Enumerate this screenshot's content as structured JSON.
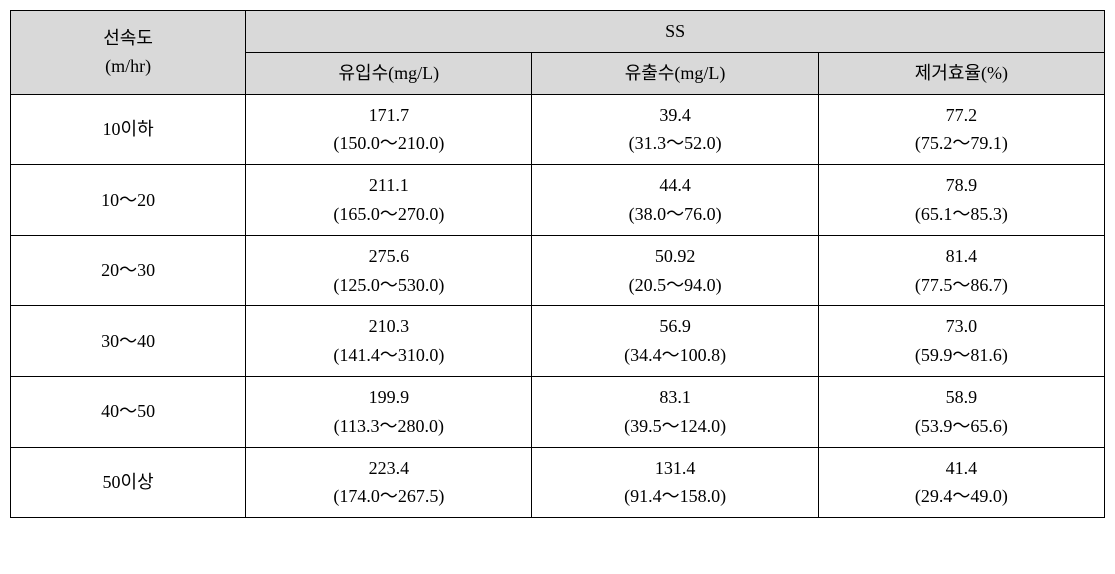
{
  "table": {
    "type": "table",
    "background_color": "#ffffff",
    "header_background": "#d9d9d9",
    "border_color": "#000000",
    "font_size": 18,
    "header": {
      "row_label_line1": "선속도",
      "row_label_line2": "(m/hr)",
      "group_label": "SS",
      "columns": [
        "유입수(mg/L)",
        "유출수(mg/L)",
        "제거효율(%)"
      ]
    },
    "rows": [
      {
        "label": "10이하",
        "cells": [
          {
            "value": "171.7",
            "range": "(150.0～210.0)"
          },
          {
            "value": "39.4",
            "range": "(31.3～52.0)"
          },
          {
            "value": "77.2",
            "range": "(75.2～79.1)"
          }
        ]
      },
      {
        "label": "10～20",
        "cells": [
          {
            "value": "211.1",
            "range": "(165.0～270.0)"
          },
          {
            "value": "44.4",
            "range": "(38.0～76.0)"
          },
          {
            "value": "78.9",
            "range": "(65.1～85.3)"
          }
        ]
      },
      {
        "label": "20～30",
        "cells": [
          {
            "value": "275.6",
            "range": "(125.0～530.0)"
          },
          {
            "value": "50.92",
            "range": "(20.5～94.0)"
          },
          {
            "value": "81.4",
            "range": "(77.5～86.7)"
          }
        ]
      },
      {
        "label": "30～40",
        "cells": [
          {
            "value": "210.3",
            "range": "(141.4～310.0)"
          },
          {
            "value": "56.9",
            "range": "(34.4～100.8)"
          },
          {
            "value": "73.0",
            "range": "(59.9～81.6)"
          }
        ]
      },
      {
        "label": "40～50",
        "cells": [
          {
            "value": "199.9",
            "range": "(113.3～280.0)"
          },
          {
            "value": "83.1",
            "range": "(39.5～124.0)"
          },
          {
            "value": "58.9",
            "range": "(53.9～65.6)"
          }
        ]
      },
      {
        "label": "50이상",
        "cells": [
          {
            "value": "223.4",
            "range": "(174.0～267.5)"
          },
          {
            "value": "131.4",
            "range": "(91.4～158.0)"
          },
          {
            "value": "41.4",
            "range": "(29.4～49.0)"
          }
        ]
      }
    ]
  }
}
